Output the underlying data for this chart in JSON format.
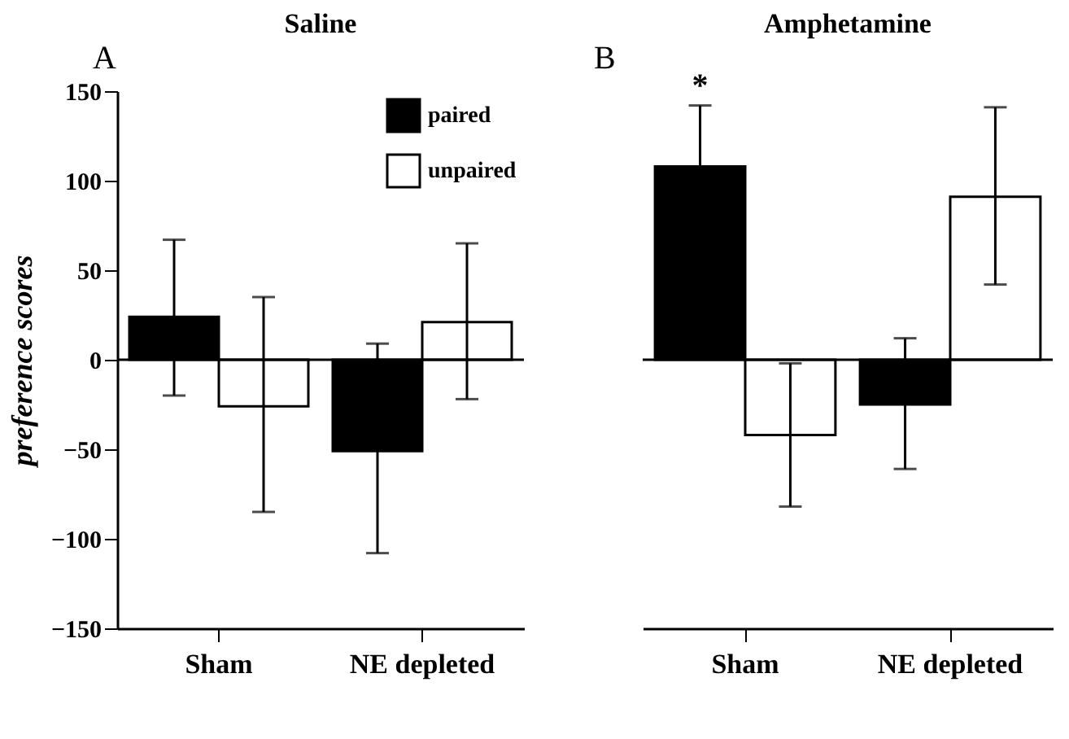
{
  "chart_data": [
    {
      "type": "bar",
      "title": "Saline",
      "ylabel": "preference scores",
      "categories": [
        "Sham",
        "NE depleted"
      ],
      "ylim": [
        -150,
        150
      ],
      "yticks": [
        -150,
        -100,
        -50,
        0,
        50,
        100,
        150
      ],
      "legend": "top right",
      "annotations": [
        "A"
      ],
      "ref_lines": [
        {
          "axis": "y",
          "value": 0
        }
      ],
      "series": [
        {
          "name": "paired",
          "color": "#000000",
          "values": [
            24,
            -51
          ],
          "errors": [
            [
              -20,
              67
            ],
            [
              -108,
              9
            ]
          ]
        },
        {
          "name": "unpaired",
          "color": "#ffffff",
          "values": [
            -26,
            21
          ],
          "errors": [
            [
              -85,
              35
            ],
            [
              -22,
              65
            ]
          ]
        }
      ]
    },
    {
      "type": "bar",
      "title": "Amphetamine",
      "categories": [
        "Sham",
        "NE depleted"
      ],
      "ylim": [
        -150,
        150
      ],
      "tick_labels": "x",
      "annotations": [
        "B",
        "*"
      ],
      "ref_lines": [
        {
          "axis": "y",
          "value": 0
        }
      ],
      "series": [
        {
          "color": "#000000",
          "values": [
            108,
            -25
          ],
          "errors": [
            34,
            [
              -61,
              12
            ]
          ]
        },
        {
          "color": "#ffffff",
          "values": [
            -42,
            91
          ],
          "errors": [
            40,
            [
              42,
              141
            ]
          ]
        }
      ]
    }
  ]
}
